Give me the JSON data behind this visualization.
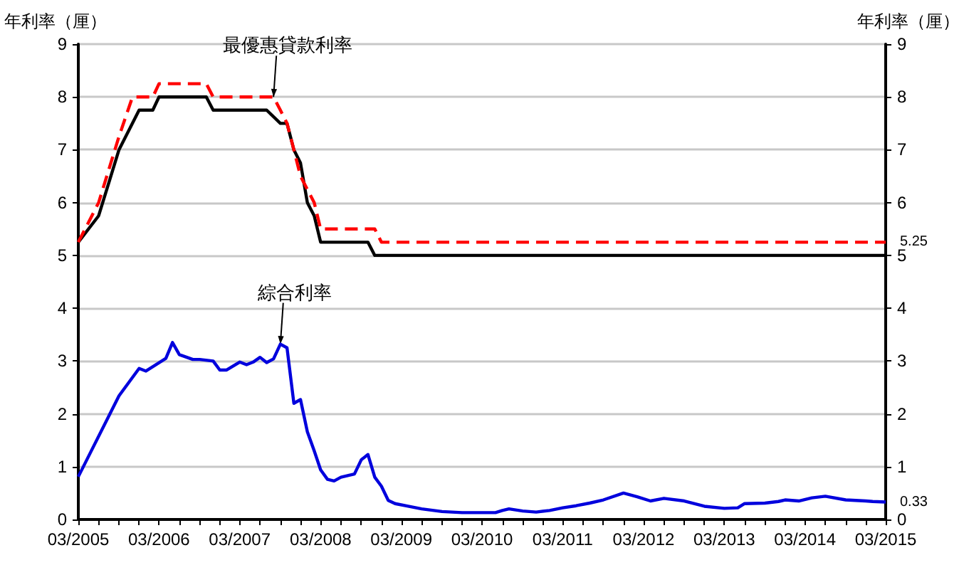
{
  "chart_data": {
    "type": "line",
    "ylabel": "年利率（厘）",
    "y2label": "年利率（厘）",
    "xlim": [
      "2005-03",
      "2015-03"
    ],
    "xticks": [
      {
        "value": "2005-03",
        "label": "03/2005"
      },
      {
        "value": "2005-06",
        "label": null
      },
      {
        "value": "2005-09",
        "label": null
      },
      {
        "value": "2005-12",
        "label": null
      },
      {
        "value": "2006-03",
        "label": "03/2006"
      },
      {
        "value": "2006-06",
        "label": null
      },
      {
        "value": "2006-09",
        "label": null
      },
      {
        "value": "2006-12",
        "label": null
      },
      {
        "value": "2007-03",
        "label": "03/2007"
      },
      {
        "value": "2007-06",
        "label": null
      },
      {
        "value": "2007-09",
        "label": null
      },
      {
        "value": "2007-12",
        "label": null
      },
      {
        "value": "2008-03",
        "label": "03/2008"
      },
      {
        "value": "2008-06",
        "label": null
      },
      {
        "value": "2008-09",
        "label": null
      },
      {
        "value": "2008-12",
        "label": null
      },
      {
        "value": "2009-03",
        "label": "03/2009"
      },
      {
        "value": "2009-06",
        "label": null
      },
      {
        "value": "2009-09",
        "label": null
      },
      {
        "value": "2009-12",
        "label": null
      },
      {
        "value": "2010-03",
        "label": "03/2010"
      },
      {
        "value": "2010-06",
        "label": null
      },
      {
        "value": "2010-09",
        "label": null
      },
      {
        "value": "2010-12",
        "label": null
      },
      {
        "value": "2011-03",
        "label": "03/2011"
      },
      {
        "value": "2011-06",
        "label": null
      },
      {
        "value": "2011-09",
        "label": null
      },
      {
        "value": "2011-12",
        "label": null
      },
      {
        "value": "2012-03",
        "label": "03/2012"
      },
      {
        "value": "2012-06",
        "label": null
      },
      {
        "value": "2012-09",
        "label": null
      },
      {
        "value": "2012-12",
        "label": null
      },
      {
        "value": "2013-03",
        "label": "03/2013"
      },
      {
        "value": "2013-06",
        "label": null
      },
      {
        "value": "2013-09",
        "label": null
      },
      {
        "value": "2013-12",
        "label": null
      },
      {
        "value": "2014-03",
        "label": "03/2014"
      },
      {
        "value": "2014-06",
        "label": null
      },
      {
        "value": "2014-09",
        "label": null
      },
      {
        "value": "2014-12",
        "label": null
      },
      {
        "value": "2015-03",
        "label": "03/2015"
      }
    ],
    "ylim": [
      0,
      9
    ],
    "yticks": [
      0,
      1,
      2,
      3,
      4,
      5,
      6,
      7,
      8,
      9
    ],
    "y2lim": [
      0,
      9
    ],
    "y2ticks": [
      0,
      1,
      2,
      3,
      4,
      5,
      6,
      7,
      8,
      9
    ],
    "grid": "y",
    "marker": "none",
    "series": [
      {
        "color": "#ff0000",
        "line_style": "dashed",
        "x": [
          "2005-03",
          "2005-06",
          "2005-09",
          "2005-11",
          "2006-02",
          "2006-03",
          "2006-10",
          "2006-11",
          "2007-08",
          "2007-09",
          "2007-10",
          "2007-11",
          "2007-12",
          "2008-01",
          "2008-02",
          "2008-03",
          "2008-11",
          "2008-12",
          "2015-03"
        ],
        "values": [
          5.25,
          6.0,
          7.25,
          8.0,
          8.0,
          8.25,
          8.25,
          8.0,
          8.0,
          7.75,
          7.5,
          7.0,
          6.5,
          6.25,
          6.0,
          5.5,
          5.5,
          5.25,
          5.25
        ],
        "value_labels": [
          null,
          null,
          null,
          null,
          null,
          null,
          null,
          null,
          null,
          null,
          null,
          null,
          null,
          null,
          null,
          null,
          null,
          null,
          "5.25"
        ]
      },
      {
        "color": "#000000",
        "line_style": "solid",
        "x": [
          "2005-03",
          "2005-06",
          "2005-09",
          "2005-12",
          "2006-02",
          "2006-03",
          "2006-10",
          "2006-11",
          "2007-07",
          "2007-09",
          "2007-10",
          "2007-11",
          "2007-12",
          "2008-01",
          "2008-02",
          "2008-03",
          "2008-10",
          "2008-11",
          "2015-03"
        ],
        "values": [
          5.25,
          5.75,
          7.0,
          7.75,
          7.75,
          8.0,
          8.0,
          7.75,
          7.75,
          7.5,
          7.5,
          7.0,
          6.75,
          6.0,
          5.75,
          5.25,
          5.25,
          5.0,
          5.0
        ]
      },
      {
        "color": "#0000dd",
        "line_style": "solid",
        "x": [
          "2005-03",
          "2005-09",
          "2005-12",
          "2006-01",
          "2006-04",
          "2006-05",
          "2006-06",
          "2006-08",
          "2006-09",
          "2006-11",
          "2006-12",
          "2007-01",
          "2007-03",
          "2007-04",
          "2007-05",
          "2007-06",
          "2007-07",
          "2007-08",
          "2007-09",
          "2007-10",
          "2007-11",
          "2007-12",
          "2008-01",
          "2008-02",
          "2008-03",
          "2008-04",
          "2008-05",
          "2008-06",
          "2008-08",
          "2008-09",
          "2008-10",
          "2008-11",
          "2008-12",
          "2009-01",
          "2009-02",
          "2009-04",
          "2009-06",
          "2009-09",
          "2009-12",
          "2010-05",
          "2010-06",
          "2010-07",
          "2010-09",
          "2010-11",
          "2011-01",
          "2011-03",
          "2011-05",
          "2011-07",
          "2011-09",
          "2011-12",
          "2012-02",
          "2012-04",
          "2012-06",
          "2012-09",
          "2012-12",
          "2013-03",
          "2013-05",
          "2013-06",
          "2013-09",
          "2013-11",
          "2013-12",
          "2014-02",
          "2014-04",
          "2014-06",
          "2014-09",
          "2014-12",
          "2015-01",
          "2015-03"
        ],
        "values": [
          0.81,
          2.34,
          2.86,
          2.81,
          3.05,
          3.35,
          3.12,
          3.03,
          3.03,
          3.0,
          2.83,
          2.83,
          2.98,
          2.93,
          2.98,
          3.07,
          2.97,
          3.04,
          3.32,
          3.25,
          2.2,
          2.27,
          1.66,
          1.3,
          0.94,
          0.76,
          0.73,
          0.8,
          0.86,
          1.13,
          1.23,
          0.8,
          0.63,
          0.36,
          0.3,
          0.25,
          0.2,
          0.15,
          0.13,
          0.13,
          0.17,
          0.2,
          0.16,
          0.14,
          0.17,
          0.22,
          0.26,
          0.31,
          0.37,
          0.5,
          0.43,
          0.35,
          0.4,
          0.35,
          0.25,
          0.21,
          0.22,
          0.3,
          0.31,
          0.34,
          0.37,
          0.35,
          0.41,
          0.44,
          0.37,
          0.35,
          0.34,
          0.33
        ],
        "value_labels": [
          null,
          null,
          null,
          null,
          null,
          null,
          null,
          null,
          null,
          null,
          null,
          null,
          null,
          null,
          null,
          null,
          null,
          null,
          null,
          null,
          null,
          null,
          null,
          null,
          null,
          null,
          null,
          null,
          null,
          null,
          null,
          null,
          null,
          null,
          null,
          null,
          null,
          null,
          null,
          null,
          null,
          null,
          null,
          null,
          null,
          null,
          null,
          null,
          null,
          null,
          null,
          null,
          null,
          null,
          null,
          null,
          null,
          null,
          null,
          null,
          null,
          null,
          null,
          null,
          null,
          null,
          null,
          "0.33"
        ]
      }
    ],
    "annotations": [
      {
        "text": "最優惠貸款利率",
        "x": "2007-08",
        "y": 8.0
      },
      {
        "text": "綜合利率",
        "x": "2007-09",
        "y": 3.32
      }
    ]
  }
}
